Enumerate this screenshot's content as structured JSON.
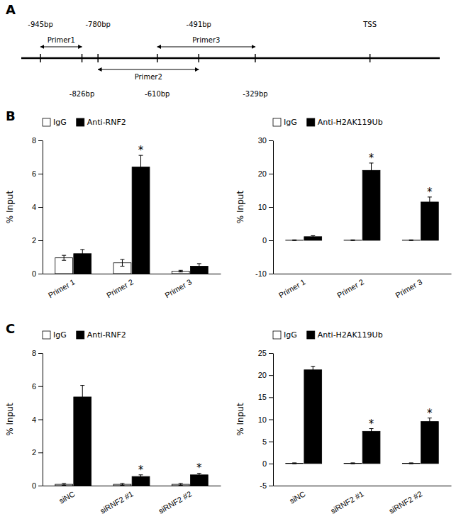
{
  "chart_data": [
    {
      "type": "diagram",
      "title": "A",
      "xlim": [
        -1000,
        200
      ],
      "xticks": [
        {
          "value": -945,
          "label": "-945bp"
        },
        {
          "value": -826,
          "label": "-826bp"
        },
        {
          "value": -780,
          "label": "-780bp"
        },
        {
          "value": -610,
          "label": "-610bp"
        },
        {
          "value": -491,
          "label": "-491bp"
        },
        {
          "value": -329,
          "label": "-329bp"
        },
        {
          "value": 0,
          "label": "TSS"
        }
      ],
      "annotations": [
        {
          "text": "Primer1",
          "x": [
            -945,
            -826
          ]
        },
        {
          "text": "Primer2",
          "x": [
            -780,
            -491
          ]
        },
        {
          "text": "Primer3",
          "x": [
            -610,
            -329
          ]
        }
      ]
    },
    {
      "type": "bar",
      "title": "B",
      "categories": [
        "Primer 1",
        "Primer 2",
        "Primer 3"
      ],
      "series": [
        {
          "name": "IgG",
          "color": "#ffffff",
          "values": [
            0.95,
            0.65,
            0.15
          ],
          "errors": [
            0.15,
            0.2,
            0.05
          ]
        },
        {
          "name": "Anti-RNF2",
          "color": "#000000",
          "values": [
            1.2,
            6.4,
            0.45
          ],
          "errors": [
            0.25,
            0.7,
            0.15
          ]
        }
      ],
      "ylabel": "% Input",
      "ylim": [
        0,
        8
      ],
      "yticks": [
        0,
        2,
        4,
        6,
        8
      ],
      "legend": "top",
      "grid": false,
      "annotations": [
        {
          "text": "*",
          "category": "Primer 2",
          "series": "Anti-RNF2"
        }
      ]
    },
    {
      "type": "bar",
      "categories": [
        "Primer 1",
        "Primer 2",
        "Primer 3"
      ],
      "series": [
        {
          "name": "IgG",
          "color": "#ffffff",
          "values": [
            0.05,
            0.05,
            0.05
          ],
          "errors": [
            0.1,
            0.1,
            0.1
          ]
        },
        {
          "name": "Anti-H2AK119Ub",
          "color": "#000000",
          "values": [
            1.1,
            21.0,
            11.5
          ],
          "errors": [
            0.3,
            2.2,
            1.5
          ]
        }
      ],
      "ylabel": "% Input",
      "ylim": [
        -10,
        30
      ],
      "yticks": [
        -10,
        0,
        10,
        20,
        30
      ],
      "legend": "top",
      "grid": false,
      "annotations": [
        {
          "text": "*",
          "category": "Primer 2",
          "series": "Anti-H2AK119Ub"
        },
        {
          "text": "*",
          "category": "Primer 3",
          "series": "Anti-H2AK119Ub"
        }
      ]
    },
    {
      "type": "bar",
      "title": "C",
      "categories": [
        "siNC",
        "siRNF2 #1",
        "siRNF2 #2"
      ],
      "series": [
        {
          "name": "IgG",
          "color": "#ffffff",
          "values": [
            0.08,
            0.08,
            0.08
          ],
          "errors": [
            0.05,
            0.05,
            0.05
          ]
        },
        {
          "name": "Anti-RNF2",
          "color": "#000000",
          "values": [
            5.35,
            0.55,
            0.65
          ],
          "errors": [
            0.7,
            0.1,
            0.1
          ]
        }
      ],
      "ylabel": "% Input",
      "ylim": [
        0,
        8
      ],
      "yticks": [
        0,
        2,
        4,
        6,
        8
      ],
      "legend": "top",
      "grid": false,
      "annotations": [
        {
          "text": "*",
          "category": "siRNF2 #1",
          "series": "Anti-RNF2"
        },
        {
          "text": "*",
          "category": "siRNF2 #2",
          "series": "Anti-RNF2"
        }
      ]
    },
    {
      "type": "bar",
      "categories": [
        "siNC",
        "siRNF2 #1",
        "siRNF2 #2"
      ],
      "series": [
        {
          "name": "IgG",
          "color": "#ffffff",
          "values": [
            0.05,
            0.05,
            0.05
          ],
          "errors": [
            0.1,
            0.1,
            0.1
          ]
        },
        {
          "name": "Anti-H2AK119Ub",
          "color": "#000000",
          "values": [
            21.2,
            7.3,
            9.5
          ],
          "errors": [
            0.8,
            0.6,
            0.8
          ]
        }
      ],
      "ylabel": "% Input",
      "ylim": [
        -5,
        25
      ],
      "yticks": [
        -5,
        0,
        5,
        10,
        15,
        20,
        25
      ],
      "legend": "top",
      "grid": false,
      "annotations": [
        {
          "text": "*",
          "category": "siRNF2 #1",
          "series": "Anti-H2AK119Ub"
        },
        {
          "text": "*",
          "category": "siRNF2 #2",
          "series": "Anti-H2AK119Ub"
        }
      ]
    }
  ]
}
